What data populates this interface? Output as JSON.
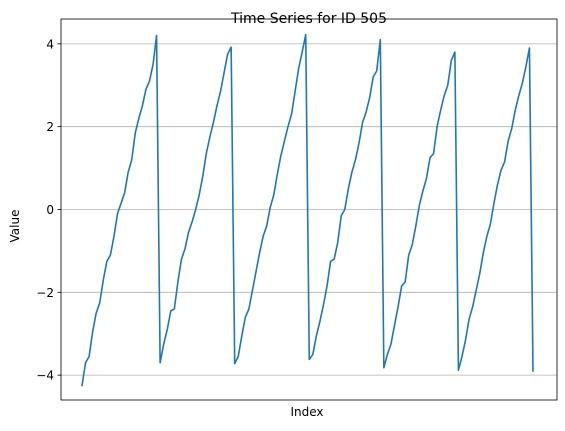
{
  "chart_data": {
    "type": "line",
    "title": "Time Series for ID 505",
    "xlabel": "Index",
    "ylabel": "Value",
    "ylim": [
      -4.6,
      4.6
    ],
    "grid": "horizontal",
    "yticks": [
      {
        "value": -4,
        "label": "−4"
      },
      {
        "value": -2,
        "label": "−2"
      },
      {
        "value": 0,
        "label": "0"
      },
      {
        "value": 2,
        "label": "2"
      },
      {
        "value": 4,
        "label": "4"
      }
    ],
    "series": [
      {
        "color": "#1f77b4",
        "values": [
          -4.25,
          -3.7,
          -3.55,
          -2.95,
          -2.5,
          -2.25,
          -1.7,
          -1.25,
          -1.1,
          -0.65,
          -0.1,
          0.15,
          0.4,
          0.9,
          1.2,
          1.85,
          2.2,
          2.5,
          2.9,
          3.1,
          3.5,
          4.2,
          -3.7,
          -3.25,
          -2.9,
          -2.45,
          -2.4,
          -1.75,
          -1.2,
          -0.95,
          -0.55,
          -0.3,
          0.0,
          0.35,
          0.8,
          1.35,
          1.75,
          2.1,
          2.5,
          2.85,
          3.3,
          3.75,
          3.92,
          -3.72,
          -3.55,
          -3.05,
          -2.6,
          -2.4,
          -1.95,
          -1.5,
          -1.05,
          -0.65,
          -0.4,
          0.05,
          0.35,
          0.85,
          1.3,
          1.65,
          2.0,
          2.3,
          2.85,
          3.4,
          3.8,
          4.22,
          -3.62,
          -3.5,
          -3.05,
          -2.7,
          -2.3,
          -1.85,
          -1.25,
          -1.2,
          -0.8,
          -0.15,
          0.0,
          0.5,
          0.9,
          1.2,
          1.6,
          2.1,
          2.35,
          2.7,
          3.2,
          3.35,
          4.1,
          -3.82,
          -3.5,
          -3.25,
          -2.8,
          -2.35,
          -1.85,
          -1.75,
          -1.1,
          -0.85,
          -0.4,
          0.1,
          0.45,
          0.75,
          1.25,
          1.35,
          2.0,
          2.4,
          2.75,
          3.0,
          3.6,
          3.8,
          -3.88,
          -3.55,
          -3.15,
          -2.65,
          -2.35,
          -1.95,
          -1.55,
          -1.05,
          -0.65,
          -0.35,
          0.15,
          0.6,
          0.95,
          1.15,
          1.65,
          1.95,
          2.4,
          2.75,
          3.05,
          3.45,
          3.9,
          -3.9
        ]
      }
    ]
  }
}
